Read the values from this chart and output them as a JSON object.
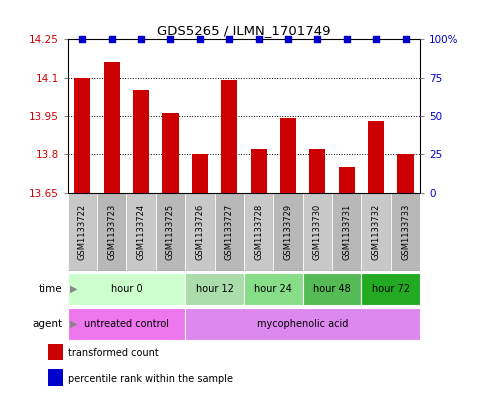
{
  "title": "GDS5265 / ILMN_1701749",
  "samples": [
    "GSM1133722",
    "GSM1133723",
    "GSM1133724",
    "GSM1133725",
    "GSM1133726",
    "GSM1133727",
    "GSM1133728",
    "GSM1133729",
    "GSM1133730",
    "GSM1133731",
    "GSM1133732",
    "GSM1133733"
  ],
  "bar_values": [
    14.1,
    14.16,
    14.05,
    13.96,
    13.8,
    14.09,
    13.82,
    13.94,
    13.82,
    13.75,
    13.93,
    13.8
  ],
  "bar_color": "#cc0000",
  "percentile_color": "#0000cc",
  "ylim_left": [
    13.65,
    14.25
  ],
  "ylim_right": [
    0,
    100
  ],
  "yticks_left": [
    13.65,
    13.8,
    13.95,
    14.1,
    14.25
  ],
  "yticks_right": [
    0,
    25,
    50,
    75,
    100
  ],
  "ytick_labels_left": [
    "13.65",
    "13.8",
    "13.95",
    "14.1",
    "14.25"
  ],
  "ytick_labels_right": [
    "0",
    "25",
    "50",
    "75",
    "100%"
  ],
  "hlines": [
    13.8,
    13.95,
    14.1
  ],
  "time_groups": [
    {
      "label": "hour 0",
      "start": 0,
      "end": 4,
      "color": "#ccffcc"
    },
    {
      "label": "hour 12",
      "start": 4,
      "end": 6,
      "color": "#aaddaa"
    },
    {
      "label": "hour 24",
      "start": 6,
      "end": 8,
      "color": "#88dd88"
    },
    {
      "label": "hour 48",
      "start": 8,
      "end": 10,
      "color": "#55bb55"
    },
    {
      "label": "hour 72",
      "start": 10,
      "end": 12,
      "color": "#22aa22"
    }
  ],
  "agent_groups": [
    {
      "label": "untreated control",
      "start": 0,
      "end": 4,
      "color": "#ee77ee"
    },
    {
      "label": "mycophenolic acid",
      "start": 4,
      "end": 12,
      "color": "#dd88ee"
    }
  ],
  "sample_bg_even": "#c8c8c8",
  "sample_bg_odd": "#b8b8b8",
  "bar_width": 0.55,
  "background_color": "#ffffff",
  "tick_label_color_left": "#cc0000",
  "tick_label_color_right": "#0000cc"
}
